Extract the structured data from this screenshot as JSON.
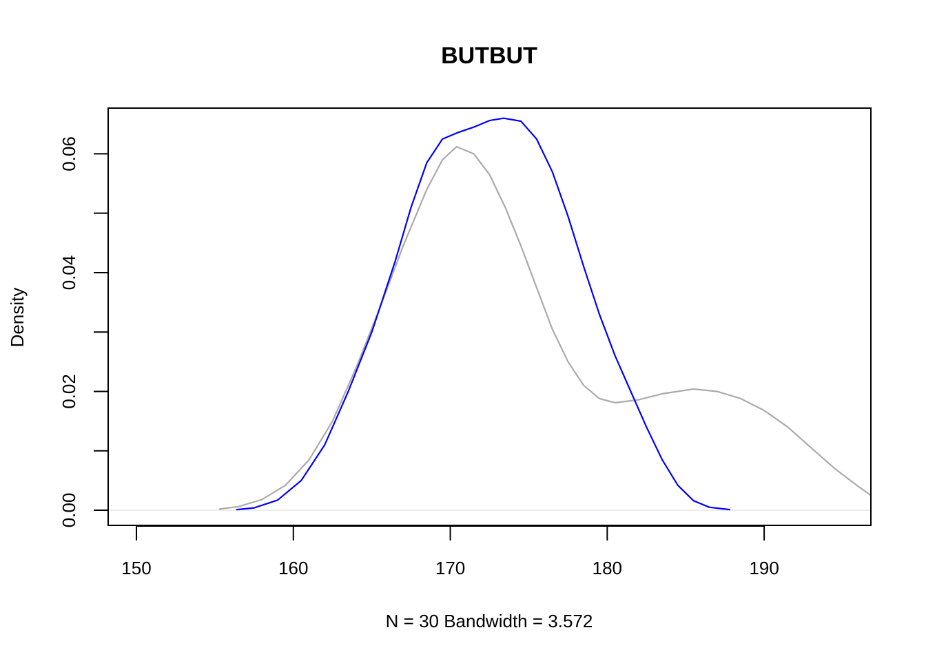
{
  "chart_data": {
    "type": "line",
    "title": "BUTBUT",
    "xlabel": "N = 30   Bandwidth = 3.572",
    "ylabel": "Density",
    "xlim": [
      148.2,
      196.8
    ],
    "ylim": [
      -0.00255,
      0.0677
    ],
    "x_ticks": [
      150,
      160,
      170,
      180,
      190
    ],
    "x_tick_labels": [
      "150",
      "160",
      "170",
      "180",
      "190"
    ],
    "y_ticks": [
      0,
      0.01,
      0.02,
      0.03,
      0.04,
      0.05,
      0.06
    ],
    "y_tick_labels": [
      "0.00",
      "",
      "0.02",
      "",
      "0.04",
      "",
      "0.06"
    ],
    "baseline": 0,
    "grid": false,
    "series": [
      {
        "color": "#aaaaaa",
        "points": [
          [
            155.3,
            0.0002
          ],
          [
            156.5,
            0.0006
          ],
          [
            158.0,
            0.0018
          ],
          [
            159.5,
            0.0042
          ],
          [
            161.0,
            0.0085
          ],
          [
            162.5,
            0.015
          ],
          [
            164.0,
            0.024
          ],
          [
            165.5,
            0.034
          ],
          [
            167.0,
            0.0445
          ],
          [
            168.5,
            0.054
          ],
          [
            169.5,
            0.059
          ],
          [
            170.4,
            0.0612
          ],
          [
            171.5,
            0.06
          ],
          [
            172.5,
            0.0565
          ],
          [
            173.5,
            0.051
          ],
          [
            174.5,
            0.0445
          ],
          [
            175.5,
            0.0375
          ],
          [
            176.5,
            0.0305
          ],
          [
            177.5,
            0.025
          ],
          [
            178.5,
            0.021
          ],
          [
            179.5,
            0.0188
          ],
          [
            180.5,
            0.0181
          ],
          [
            182.0,
            0.0186
          ],
          [
            183.5,
            0.0196
          ],
          [
            185.5,
            0.0204
          ],
          [
            187.0,
            0.02
          ],
          [
            188.5,
            0.0188
          ],
          [
            190.0,
            0.0168
          ],
          [
            191.5,
            0.014
          ],
          [
            193.0,
            0.0105
          ],
          [
            194.5,
            0.007
          ],
          [
            196.0,
            0.004
          ],
          [
            196.8,
            0.0025
          ]
        ]
      },
      {
        "color": "#0000ff",
        "points": [
          [
            156.4,
            0.0001
          ],
          [
            157.5,
            0.0004
          ],
          [
            159.0,
            0.0017
          ],
          [
            160.5,
            0.005
          ],
          [
            162.0,
            0.011
          ],
          [
            163.5,
            0.02
          ],
          [
            165.0,
            0.03
          ],
          [
            166.5,
            0.042
          ],
          [
            167.5,
            0.051
          ],
          [
            168.5,
            0.0585
          ],
          [
            169.5,
            0.0625
          ],
          [
            170.5,
            0.0636
          ],
          [
            171.5,
            0.0645
          ],
          [
            172.5,
            0.0656
          ],
          [
            173.4,
            0.066
          ],
          [
            174.5,
            0.0655
          ],
          [
            175.5,
            0.0625
          ],
          [
            176.5,
            0.057
          ],
          [
            177.5,
            0.0495
          ],
          [
            178.5,
            0.041
          ],
          [
            179.5,
            0.033
          ],
          [
            180.5,
            0.026
          ],
          [
            181.5,
            0.02
          ],
          [
            182.5,
            0.014
          ],
          [
            183.5,
            0.0085
          ],
          [
            184.5,
            0.0042
          ],
          [
            185.5,
            0.0016
          ],
          [
            186.5,
            0.0005
          ],
          [
            187.8,
            0.0001
          ]
        ]
      }
    ]
  }
}
